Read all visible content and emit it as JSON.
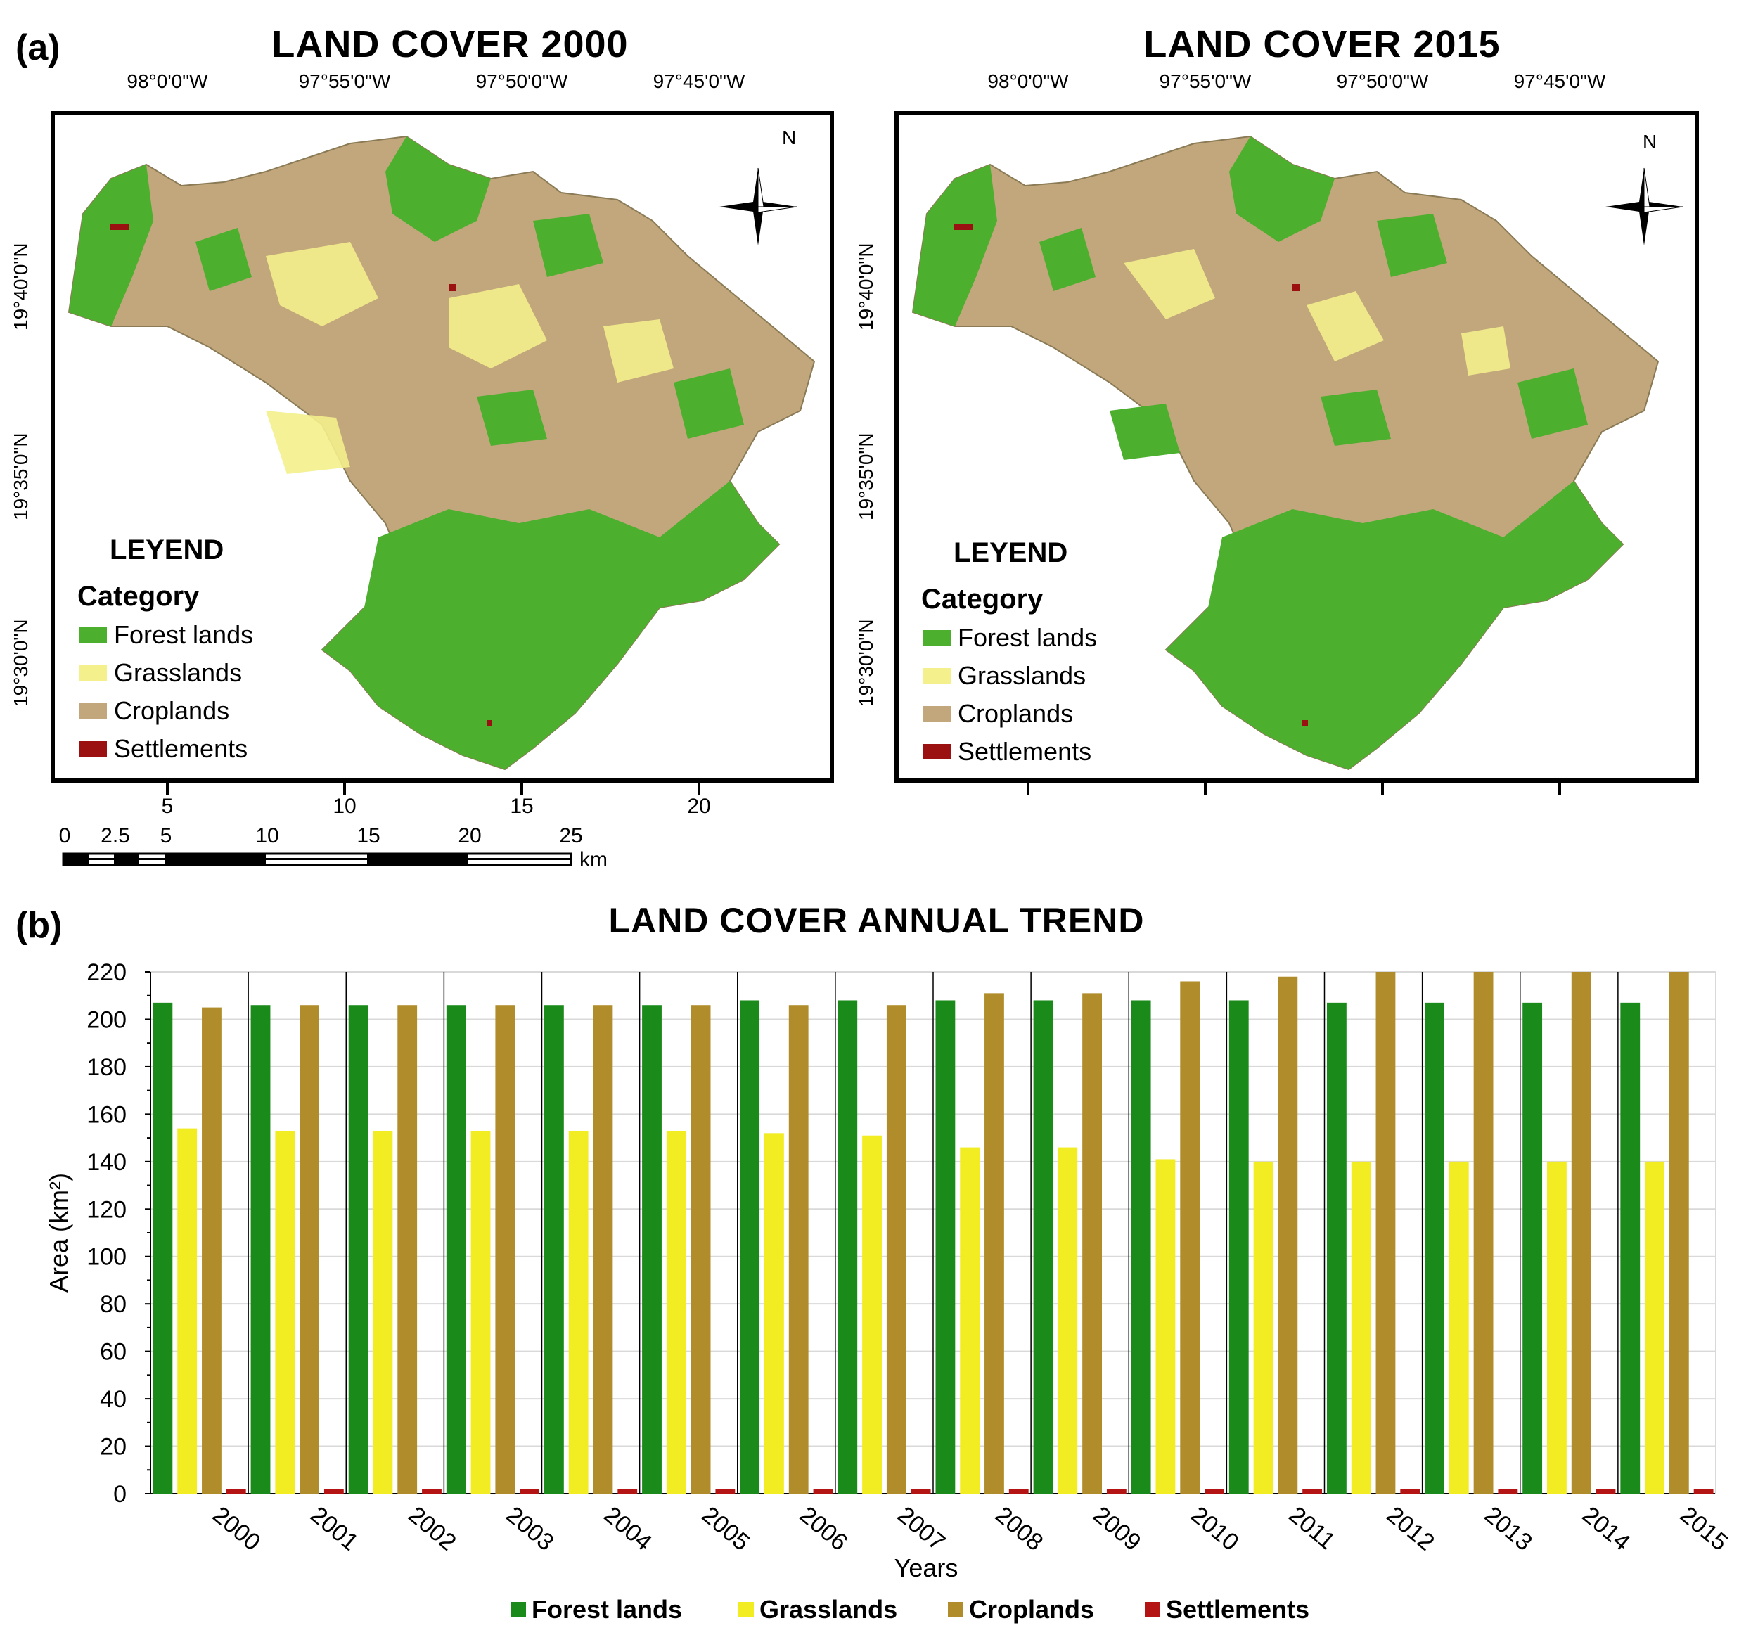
{
  "panel_a": {
    "label": "(a)",
    "maps": [
      {
        "title": "LAND COVER 2000",
        "lon_labels": [
          "98°0'0\"W",
          "97°55'0\"W",
          "97°50'0\"W",
          "97°45'0\"W"
        ],
        "lat_labels": [
          "19°40'0\"N",
          "19°35'0\"N",
          "19°30'0\"N"
        ],
        "bottom_ticks": [
          "5",
          "10",
          "15",
          "20"
        ]
      },
      {
        "title": "LAND COVER 2015",
        "lon_labels": [
          "98°0'0\"W",
          "97°55'0\"W",
          "97°50'0\"W",
          "97°45'0\"W"
        ],
        "lat_labels": [
          "19°40'0\"N",
          "19°35'0\"N",
          "19°30'0\"N"
        ]
      }
    ],
    "north_label": "N",
    "legend": {
      "title": "LEYEND",
      "subtitle": "Category",
      "items": [
        {
          "label": "Forest lands",
          "color": "#4caf2e"
        },
        {
          "label": "Grasslands",
          "color": "#f4f08c"
        },
        {
          "label": "Croplands",
          "color": "#c2a77c"
        },
        {
          "label": "Settlements",
          "color": "#9b1010"
        }
      ]
    },
    "scale_bar": {
      "labels": [
        "0",
        "2.5",
        "5",
        "10",
        "15",
        "20",
        "25"
      ],
      "unit": "km"
    }
  },
  "panel_b": {
    "label": "(b)"
  },
  "colors": {
    "forest": "#1a8a1a",
    "grass": "#f2ec22",
    "crop": "#b08c2a",
    "settle": "#b51414",
    "map_forest": "#4caf2e",
    "map_grass": "#f4f08c",
    "map_crop": "#c2a77c"
  },
  "chart_data": {
    "type": "bar",
    "title": "LAND COVER ANNUAL TREND",
    "xlabel": "Years",
    "ylabel": "Area (km²)",
    "ylim": [
      0,
      220
    ],
    "yticks": [
      0,
      20,
      40,
      60,
      80,
      100,
      120,
      140,
      160,
      180,
      200,
      220
    ],
    "categories": [
      "2000",
      "2001",
      "2002",
      "2003",
      "2004",
      "2005",
      "2006",
      "2007",
      "2008",
      "2009",
      "2010",
      "2011",
      "2012",
      "2013",
      "2014",
      "2015"
    ],
    "series": [
      {
        "name": "Forest lands",
        "color": "#1a8a1a",
        "values": [
          207,
          206,
          206,
          206,
          206,
          206,
          208,
          208,
          208,
          208,
          208,
          208,
          207,
          207,
          207,
          207
        ]
      },
      {
        "name": "Grasslands",
        "color": "#f2ec22",
        "values": [
          154,
          153,
          153,
          153,
          153,
          153,
          152,
          151,
          146,
          146,
          141,
          140,
          140,
          140,
          140,
          140
        ]
      },
      {
        "name": "Croplands",
        "color": "#b08c2a",
        "values": [
          205,
          206,
          206,
          206,
          206,
          206,
          206,
          206,
          211,
          211,
          216,
          218,
          220,
          220,
          220,
          220
        ]
      },
      {
        "name": "Settlements",
        "color": "#b51414",
        "values": [
          2,
          2,
          2,
          2,
          2,
          2,
          2,
          2,
          2,
          2,
          2,
          2,
          2,
          2,
          2,
          2
        ]
      }
    ],
    "legend_position": "bottom",
    "grid": "horizontal"
  }
}
